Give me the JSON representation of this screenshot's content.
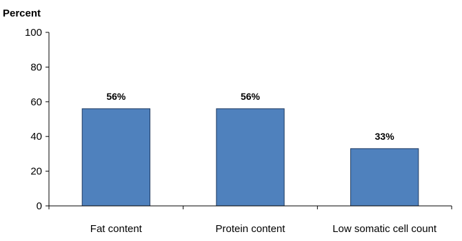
{
  "chart_data": {
    "type": "bar",
    "categories": [
      "Fat content",
      "Protein content",
      "Low somatic cell count"
    ],
    "values": [
      56,
      56,
      33
    ],
    "data_labels": [
      "56%",
      "56%",
      "33%"
    ],
    "title": "",
    "xlabel": "",
    "ylabel": "Percent",
    "ylim": [
      0,
      100
    ],
    "yticks": [
      0,
      20,
      40,
      60,
      80,
      100
    ],
    "grid": false,
    "legend": "none",
    "bar_color": "#4F81BD",
    "bar_edge_color": "#1F3A60"
  }
}
